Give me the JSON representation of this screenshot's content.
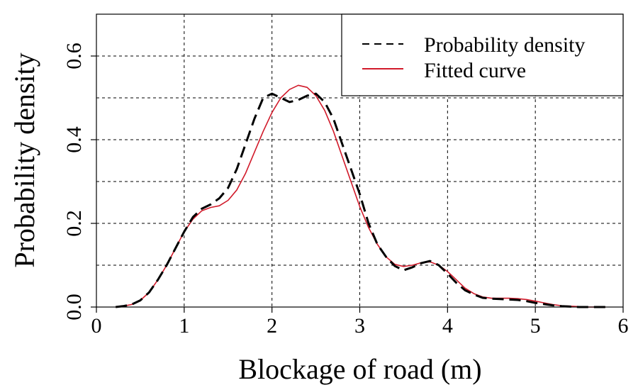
{
  "chart_data": {
    "type": "line",
    "xlabel": "Blockage of road (m)",
    "ylabel": "Probability density",
    "xlim": [
      0,
      6
    ],
    "ylim": [
      0,
      0.7
    ],
    "xticks": [
      "0",
      "1",
      "2",
      "3",
      "4",
      "5",
      "6"
    ],
    "yticks": [
      "0.0",
      "0.2",
      "0.4",
      "0.6"
    ],
    "grid": true,
    "legend_position": "top-right",
    "series": [
      {
        "name": "Probability density",
        "style": "dashed",
        "color": "#000000",
        "x": [
          0.22,
          0.3,
          0.4,
          0.5,
          0.6,
          0.7,
          0.8,
          0.9,
          1.0,
          1.1,
          1.2,
          1.3,
          1.4,
          1.5,
          1.6,
          1.7,
          1.8,
          1.9,
          2.0,
          2.1,
          2.2,
          2.3,
          2.4,
          2.5,
          2.6,
          2.7,
          2.8,
          2.9,
          3.0,
          3.1,
          3.2,
          3.3,
          3.4,
          3.5,
          3.6,
          3.7,
          3.8,
          3.9,
          4.0,
          4.1,
          4.2,
          4.3,
          4.4,
          4.5,
          4.6,
          4.7,
          4.8,
          4.9,
          5.0,
          5.1,
          5.2,
          5.3,
          5.4,
          5.5,
          5.6,
          5.7,
          5.8
        ],
        "y": [
          0.0,
          0.002,
          0.006,
          0.016,
          0.035,
          0.065,
          0.1,
          0.14,
          0.18,
          0.215,
          0.235,
          0.245,
          0.26,
          0.285,
          0.33,
          0.39,
          0.45,
          0.5,
          0.51,
          0.5,
          0.49,
          0.495,
          0.505,
          0.51,
          0.49,
          0.45,
          0.39,
          0.33,
          0.27,
          0.2,
          0.15,
          0.12,
          0.098,
          0.088,
          0.095,
          0.105,
          0.11,
          0.1,
          0.08,
          0.058,
          0.04,
          0.03,
          0.022,
          0.02,
          0.019,
          0.018,
          0.017,
          0.014,
          0.01,
          0.007,
          0.004,
          0.002,
          0.001,
          0.0,
          0.0,
          0.0,
          0.0
        ]
      },
      {
        "name": "Fitted curve",
        "style": "solid",
        "color": "#d11a2a",
        "x": [
          0.22,
          0.3,
          0.4,
          0.5,
          0.6,
          0.7,
          0.8,
          0.9,
          1.0,
          1.1,
          1.2,
          1.3,
          1.4,
          1.5,
          1.6,
          1.7,
          1.8,
          1.9,
          2.0,
          2.1,
          2.2,
          2.3,
          2.4,
          2.5,
          2.6,
          2.7,
          2.8,
          2.9,
          3.0,
          3.1,
          3.2,
          3.3,
          3.4,
          3.5,
          3.6,
          3.7,
          3.8,
          3.9,
          4.0,
          4.1,
          4.2,
          4.3,
          4.4,
          4.5,
          4.6,
          4.7,
          4.8,
          4.9,
          5.0,
          5.1,
          5.2,
          5.3,
          5.4,
          5.5,
          5.6,
          5.7,
          5.8
        ],
        "y": [
          0.0,
          0.002,
          0.006,
          0.016,
          0.035,
          0.065,
          0.1,
          0.14,
          0.18,
          0.21,
          0.23,
          0.238,
          0.242,
          0.255,
          0.28,
          0.32,
          0.37,
          0.42,
          0.465,
          0.5,
          0.52,
          0.53,
          0.525,
          0.505,
          0.47,
          0.42,
          0.36,
          0.3,
          0.24,
          0.19,
          0.15,
          0.12,
          0.102,
          0.097,
          0.1,
          0.106,
          0.108,
          0.1,
          0.085,
          0.065,
          0.045,
          0.032,
          0.024,
          0.021,
          0.021,
          0.021,
          0.02,
          0.018,
          0.014,
          0.01,
          0.006,
          0.003,
          0.002,
          0.001,
          0.0,
          0.0,
          0.0
        ]
      }
    ]
  }
}
